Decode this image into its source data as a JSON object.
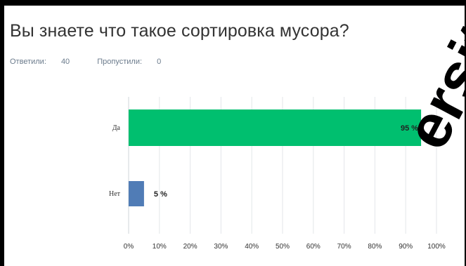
{
  "question": {
    "title": "Вы знаете что такое сортировка мусора?",
    "answered_label": "Ответили:",
    "answered_count": "40",
    "skipped_label": "Пропустили:",
    "skipped_count": "0"
  },
  "watermark": "ersit",
  "colors": {
    "yes": "#00bf6f",
    "no": "#507cb6"
  },
  "chart_data": {
    "type": "bar",
    "orientation": "horizontal",
    "categories": [
      "Да",
      "Нет"
    ],
    "values": [
      95,
      5
    ],
    "value_labels": [
      "95 %",
      "5 %"
    ],
    "xlim": [
      0,
      100
    ],
    "x_ticks": [
      "0%",
      "10%",
      "20%",
      "30%",
      "40%",
      "50%",
      "60%",
      "70%",
      "80%",
      "90%",
      "100%"
    ],
    "grid": true
  }
}
